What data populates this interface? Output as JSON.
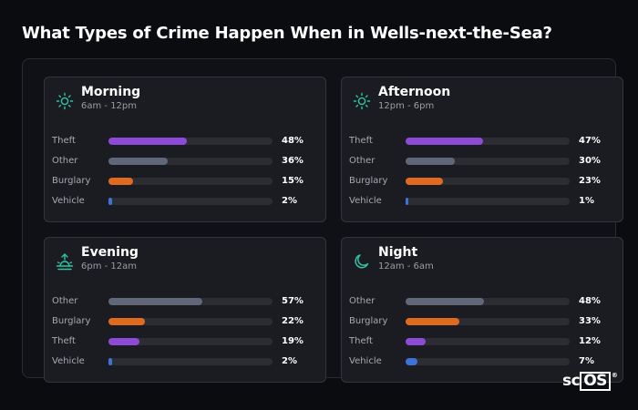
{
  "title": "What Types of Crime Happen When in Wells-next-the-Sea?",
  "logo": {
    "text_sc": "sc",
    "text_os": "OS",
    "reg": "®"
  },
  "colors": {
    "Theft": "#8d4ad6",
    "Other": "#5f6778",
    "Burglary": "#e06a1d",
    "Vehicle": "#3b73d9",
    "icon": "#2ec4a4"
  },
  "chart_data": [
    {
      "type": "bar",
      "title": "Morning",
      "subtitle": "6am - 12pm",
      "icon": "sun-icon",
      "categories": [
        "Theft",
        "Other",
        "Burglary",
        "Vehicle"
      ],
      "values": [
        48,
        36,
        15,
        2
      ],
      "labels": [
        "48%",
        "36%",
        "15%",
        "2%"
      ],
      "xlim": [
        0,
        100
      ]
    },
    {
      "type": "bar",
      "title": "Afternoon",
      "subtitle": "12pm - 6pm",
      "icon": "sun-icon",
      "categories": [
        "Theft",
        "Other",
        "Burglary",
        "Vehicle"
      ],
      "values": [
        47,
        30,
        23,
        1
      ],
      "labels": [
        "47%",
        "30%",
        "23%",
        "1%"
      ],
      "xlim": [
        0,
        100
      ]
    },
    {
      "type": "bar",
      "title": "Evening",
      "subtitle": "6pm - 12am",
      "icon": "sunset-icon",
      "categories": [
        "Other",
        "Burglary",
        "Theft",
        "Vehicle"
      ],
      "values": [
        57,
        22,
        19,
        2
      ],
      "labels": [
        "57%",
        "22%",
        "19%",
        "2%"
      ],
      "xlim": [
        0,
        100
      ]
    },
    {
      "type": "bar",
      "title": "Night",
      "subtitle": "12am - 6am",
      "icon": "moon-icon",
      "categories": [
        "Other",
        "Burglary",
        "Theft",
        "Vehicle"
      ],
      "values": [
        48,
        33,
        12,
        7
      ],
      "labels": [
        "48%",
        "33%",
        "12%",
        "7%"
      ],
      "xlim": [
        0,
        100
      ]
    }
  ]
}
